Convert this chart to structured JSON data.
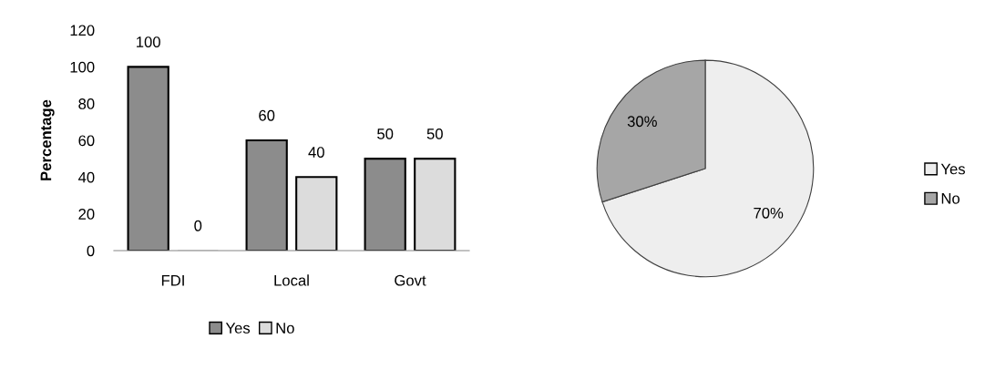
{
  "chart_data": [
    {
      "type": "bar",
      "categories": [
        "FDI",
        "Local",
        "Govt"
      ],
      "series": [
        {
          "name": "Yes",
          "color": "#8c8c8c",
          "values": [
            100,
            60,
            50
          ]
        },
        {
          "name": "No",
          "color": "#dcdcdc",
          "values": [
            0,
            40,
            50
          ]
        }
      ],
      "ylabel": "Percentage",
      "ylim": [
        0,
        120
      ],
      "yticks": [
        0,
        20,
        40,
        60,
        80,
        100,
        120
      ],
      "data_labels": true,
      "legend": "bottom",
      "grid": false
    },
    {
      "type": "pie",
      "categories": [
        "Yes",
        "No"
      ],
      "values": [
        70,
        30
      ],
      "colors": [
        "#eeeeee",
        "#a6a6a6"
      ],
      "value_labels": [
        "70%",
        "30%"
      ],
      "legend": "right"
    }
  ]
}
